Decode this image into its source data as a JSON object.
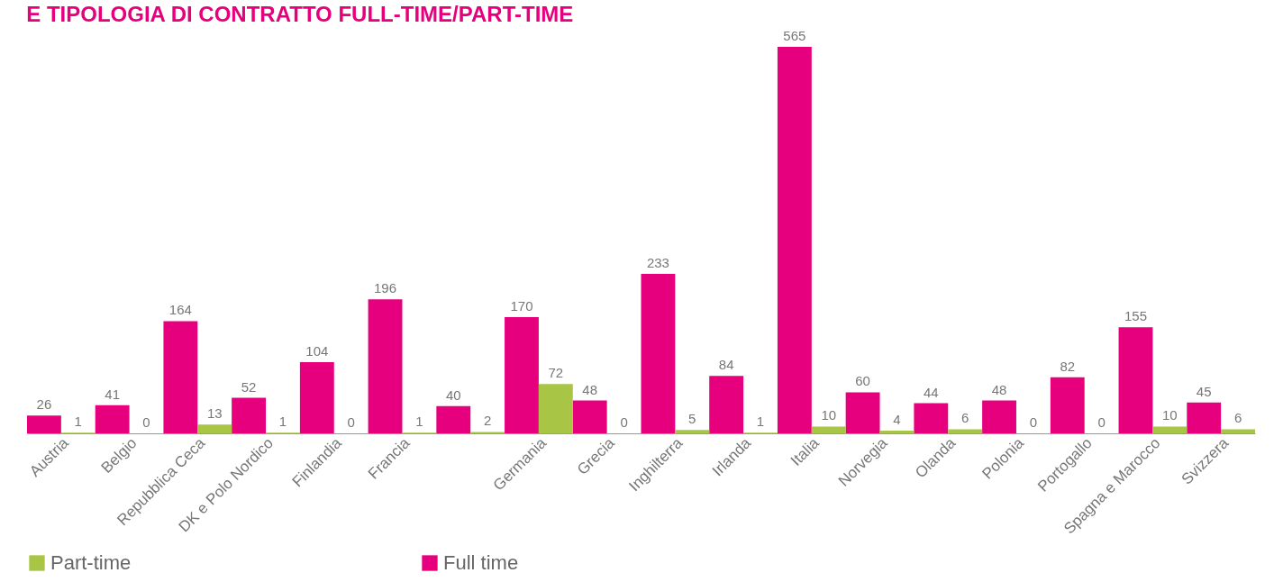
{
  "chart_data": {
    "type": "bar",
    "title": "E TIPOLOGIA DI CONTRATTO FULL-TIME/PART-TIME",
    "categories": [
      "Austria",
      "Belgio",
      "Repubblica Ceca",
      "DK e Polo Nordico",
      "Finlandia",
      "Francia",
      null,
      "Germania",
      "Grecia",
      "Inghilterra",
      "Irlanda",
      "Italia",
      "Norvegia",
      "Olanda",
      "Polonia",
      "Portogallo",
      "Spagna e Marocco",
      "Svizzera"
    ],
    "series": [
      {
        "name": "Full time",
        "color": "#e6007e",
        "values": [
          26,
          41,
          164,
          52,
          104,
          196,
          40,
          170,
          48,
          233,
          84,
          565,
          60,
          44,
          48,
          82,
          155,
          45
        ]
      },
      {
        "name": "Part-time",
        "color": "#a8c545",
        "values": [
          1,
          0,
          13,
          1,
          0,
          1,
          2,
          72,
          0,
          5,
          1,
          10,
          4,
          6,
          0,
          0,
          10,
          6
        ]
      }
    ],
    "data_labels": true,
    "legend": "bottom",
    "grid": false
  }
}
